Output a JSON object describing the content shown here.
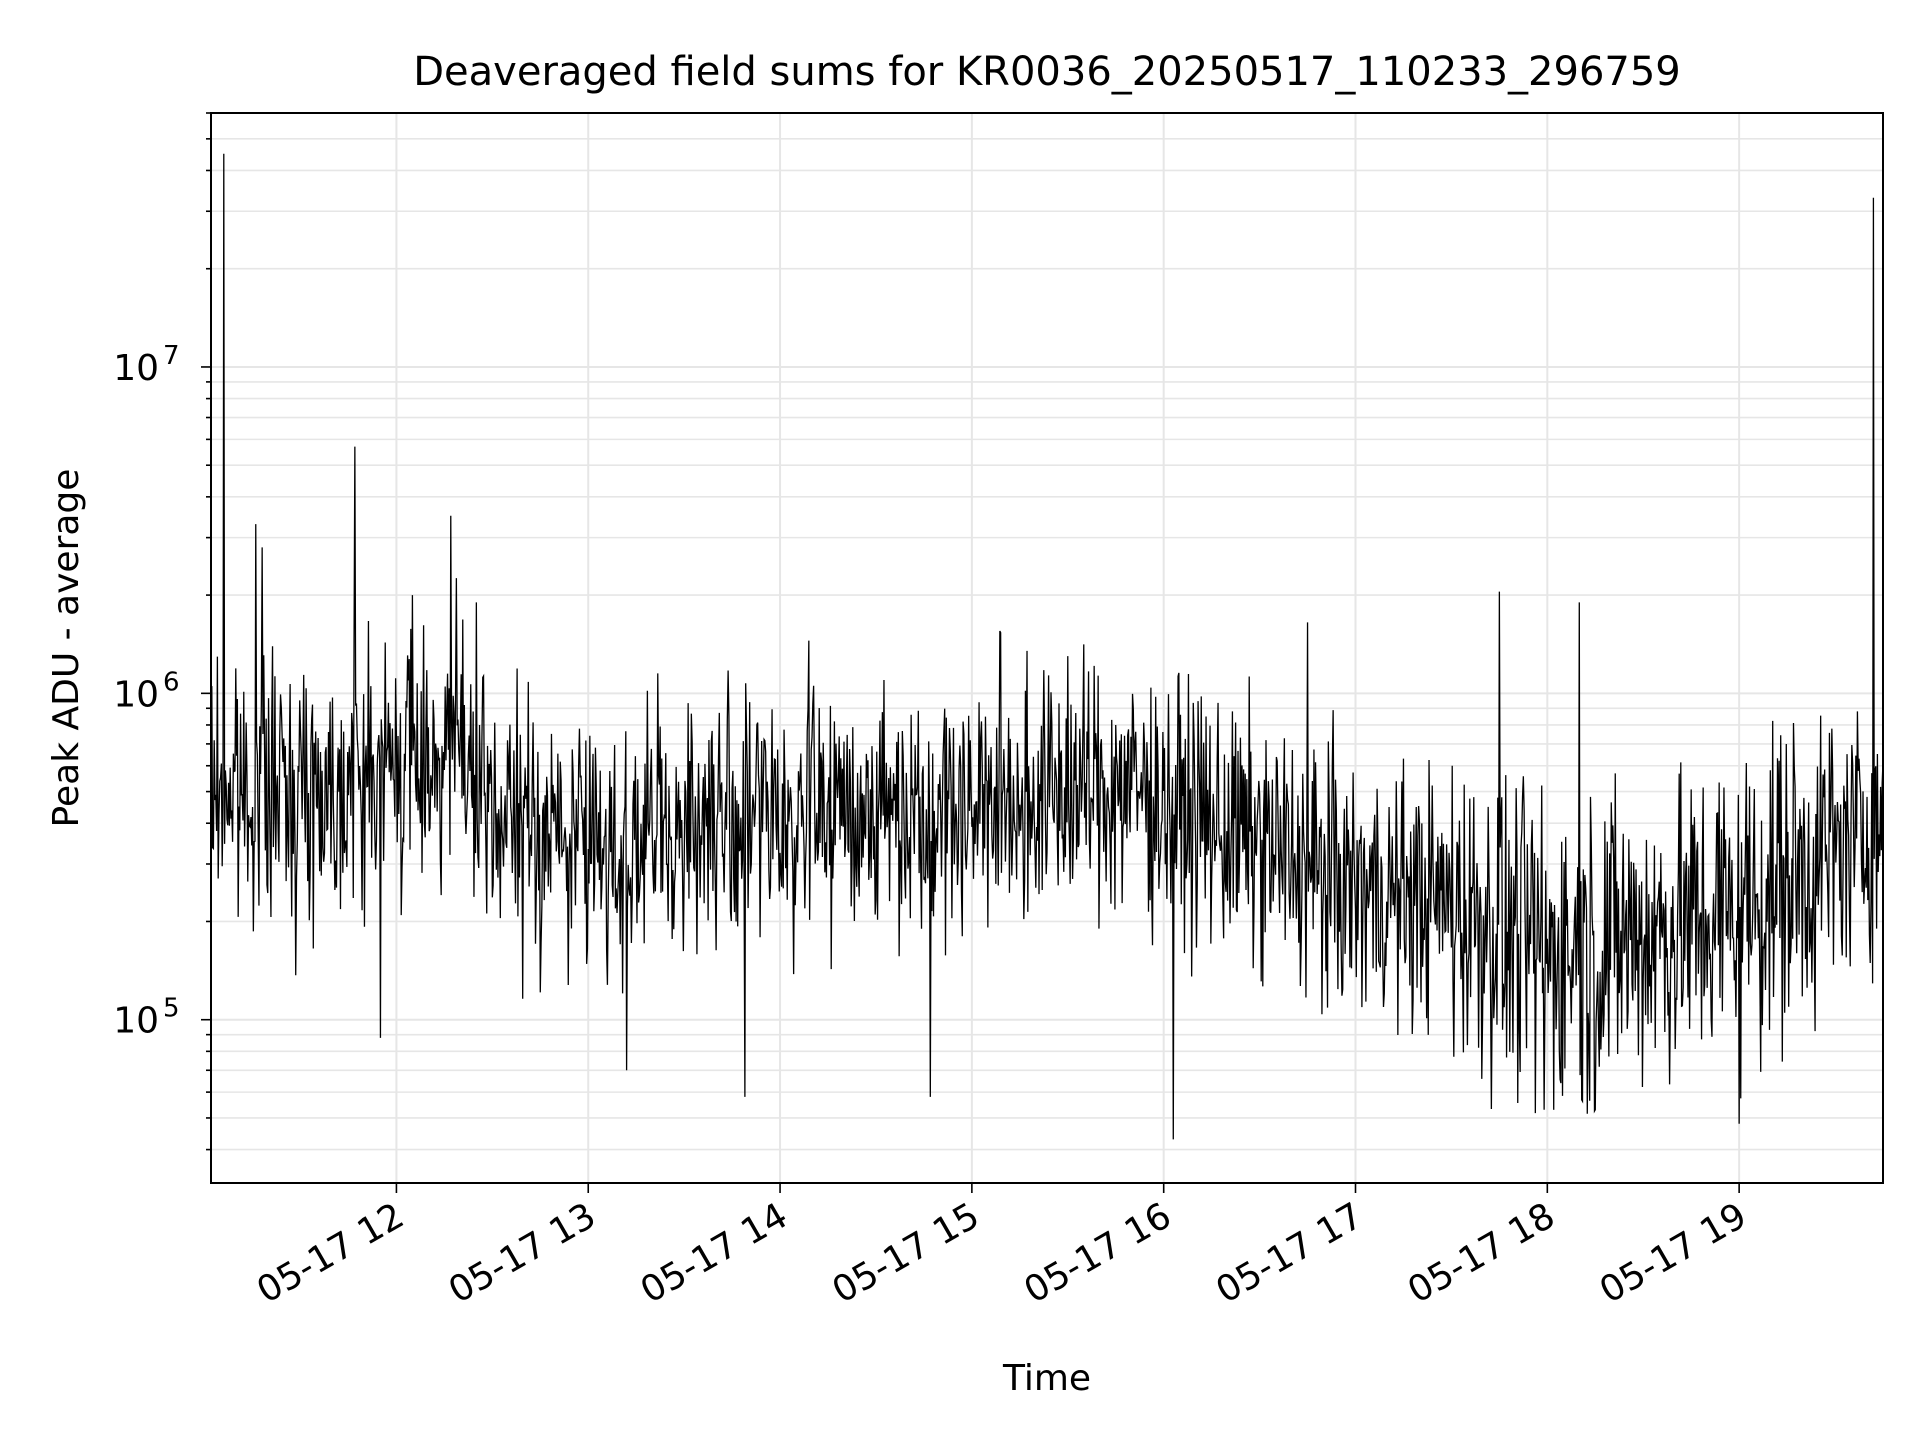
{
  "chart_data": {
    "type": "line",
    "title": "Deaveraged field sums for KR0036_20250517_110233_296759",
    "xlabel": "Time",
    "ylabel": "Peak ADU - average",
    "yscale": "log",
    "ylim": [
      31600,
      60000000
    ],
    "xlim": [
      "2025-05-17 11:02",
      "2025-05-17 19:45"
    ],
    "x_tick_labels": [
      "05-17 12",
      "05-17 13",
      "05-17 14",
      "05-17 15",
      "05-17 16",
      "05-17 17",
      "05-17 18",
      "05-17 19"
    ],
    "y_tick_labels": [
      {
        "base": "10",
        "exp": "5"
      },
      {
        "base": "10",
        "exp": "6"
      },
      {
        "base": "10",
        "exp": "7"
      }
    ],
    "grid": true,
    "legend": "none",
    "series": [
      {
        "color": "#000000",
        "x_start": "2025-05-17 11:02",
        "x_end": "2025-05-17 19:45",
        "baseline_segments": [
          {
            "x": "2025-05-17 11:02",
            "y": 500000
          },
          {
            "x": "2025-05-17 11:40",
            "y": 520000
          },
          {
            "x": "2025-05-17 12:20",
            "y": 700000
          },
          {
            "x": "2025-05-17 12:25",
            "y": 430000
          },
          {
            "x": "2025-05-17 13:10",
            "y": 330000
          },
          {
            "x": "2025-05-17 13:30",
            "y": 400000
          },
          {
            "x": "2025-05-17 14:00",
            "y": 430000
          },
          {
            "x": "2025-05-17 15:00",
            "y": 460000
          },
          {
            "x": "2025-05-17 15:50",
            "y": 520000
          },
          {
            "x": "2025-05-17 16:20",
            "y": 380000
          },
          {
            "x": "2025-05-17 17:00",
            "y": 250000
          },
          {
            "x": "2025-05-17 17:30",
            "y": 230000
          },
          {
            "x": "2025-05-17 18:00",
            "y": 160000
          },
          {
            "x": "2025-05-17 18:40",
            "y": 190000
          },
          {
            "x": "2025-05-17 19:00",
            "y": 220000
          },
          {
            "x": "2025-05-17 19:45",
            "y": 400000
          }
        ],
        "peaks": [
          {
            "x": "2025-05-17 11:06",
            "y": 45000000
          },
          {
            "x": "2025-05-17 11:16",
            "y": 3300000
          },
          {
            "x": "2025-05-17 11:18",
            "y": 2800000
          },
          {
            "x": "2025-05-17 11:47",
            "y": 5700000
          },
          {
            "x": "2025-05-17 12:05",
            "y": 2000000
          },
          {
            "x": "2025-05-17 12:17",
            "y": 3500000
          },
          {
            "x": "2025-05-17 12:25",
            "y": 1900000
          },
          {
            "x": "2025-05-17 14:09",
            "y": 1450000
          },
          {
            "x": "2025-05-17 15:30",
            "y": 1300000
          },
          {
            "x": "2025-05-17 16:45",
            "y": 1650000
          },
          {
            "x": "2025-05-17 17:45",
            "y": 2050000
          },
          {
            "x": "2025-05-17 18:10",
            "y": 1900000
          },
          {
            "x": "2025-05-17 19:42",
            "y": 33000000
          }
        ],
        "troughs": [
          {
            "x": "2025-05-17 11:55",
            "y": 88000
          },
          {
            "x": "2025-05-17 13:12",
            "y": 70000
          },
          {
            "x": "2025-05-17 13:49",
            "y": 58000
          },
          {
            "x": "2025-05-17 14:47",
            "y": 58000
          },
          {
            "x": "2025-05-17 16:03",
            "y": 43000
          },
          {
            "x": "2025-05-17 17:59",
            "y": 53000
          },
          {
            "x": "2025-05-17 18:15",
            "y": 53000
          },
          {
            "x": "2025-05-17 19:00",
            "y": 48000
          }
        ]
      }
    ]
  }
}
